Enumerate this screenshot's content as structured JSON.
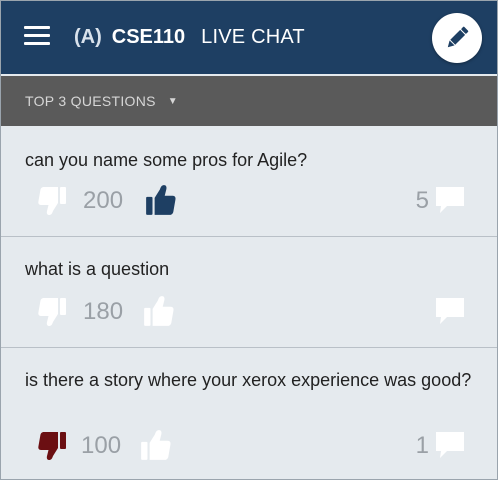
{
  "header": {
    "section": "(A)",
    "course": "CSE110",
    "subtitle": "LIVE CHAT"
  },
  "filter": {
    "label": "TOP 3 QUESTIONS"
  },
  "colors": {
    "header_bg": "#1e3f63",
    "filter_bg": "#5a5a5a",
    "upvote_active": "#1e3f63",
    "downvote_active": "#6b0f12",
    "inactive_icon": "#ffffff",
    "page_bg": "#e5eaee"
  },
  "questions": [
    {
      "text": "can you name some pros for Agile?",
      "score": "200",
      "comments": "5",
      "upvoted": true,
      "downvoted": false
    },
    {
      "text": "what is a question",
      "score": "180",
      "comments": "",
      "upvoted": false,
      "downvoted": false
    },
    {
      "text": "is there a story where your xerox experience was good?",
      "score": "100",
      "comments": "1",
      "upvoted": false,
      "downvoted": true
    }
  ]
}
